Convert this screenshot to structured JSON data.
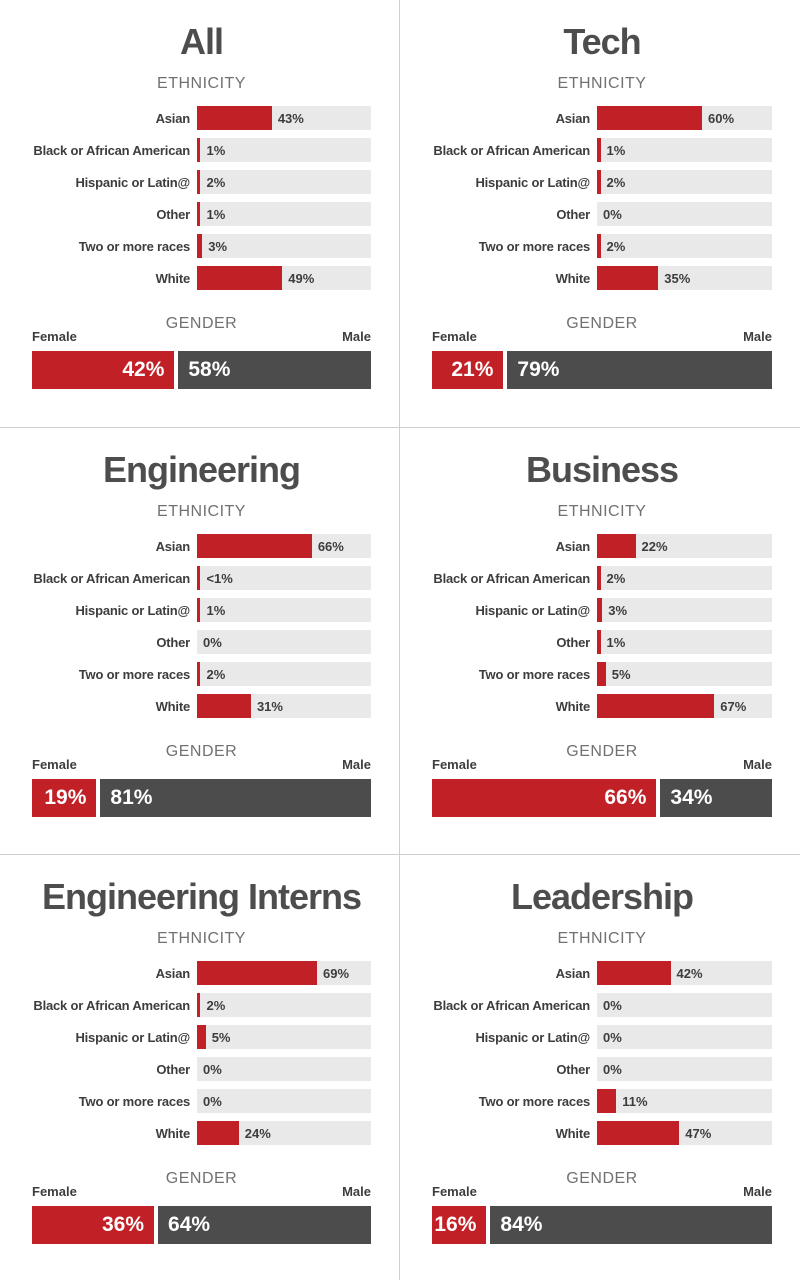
{
  "labels": {
    "ethnicity_heading": "ETHNICITY",
    "gender_heading": "GENDER",
    "female_label": "Female",
    "male_label": "Male"
  },
  "colors": {
    "accent_red": "#c22027",
    "male_dark": "#4c4c4c",
    "bar_track": "#e9e9e9",
    "divider": "#cfcfcf"
  },
  "chart_data": [
    {
      "type": "bar",
      "title": "All",
      "ethnicity": {
        "categories": [
          "Asian",
          "Black or African American",
          "Hispanic or Latin@",
          "Other",
          "Two or more races",
          "White"
        ],
        "values": [
          43,
          1,
          2,
          1,
          3,
          49
        ],
        "display": [
          "43%",
          "1%",
          "2%",
          "1%",
          "3%",
          "49%"
        ],
        "xlim": [
          0,
          100
        ]
      },
      "gender": {
        "female": 42,
        "male": 58,
        "female_display": "42%",
        "male_display": "58%"
      }
    },
    {
      "type": "bar",
      "title": "Tech",
      "ethnicity": {
        "categories": [
          "Asian",
          "Black or African American",
          "Hispanic or Latin@",
          "Other",
          "Two or more races",
          "White"
        ],
        "values": [
          60,
          1,
          2,
          0,
          2,
          35
        ],
        "display": [
          "60%",
          "1%",
          "2%",
          "0%",
          "2%",
          "35%"
        ],
        "xlim": [
          0,
          100
        ]
      },
      "gender": {
        "female": 21,
        "male": 79,
        "female_display": "21%",
        "male_display": "79%"
      }
    },
    {
      "type": "bar",
      "title": "Engineering",
      "ethnicity": {
        "categories": [
          "Asian",
          "Black or African American",
          "Hispanic or Latin@",
          "Other",
          "Two or more races",
          "White"
        ],
        "values": [
          66,
          0.5,
          1,
          0,
          2,
          31
        ],
        "display": [
          "66%",
          "<1%",
          "1%",
          "0%",
          "2%",
          "31%"
        ],
        "xlim": [
          0,
          100
        ]
      },
      "gender": {
        "female": 19,
        "male": 81,
        "female_display": "19%",
        "male_display": "81%"
      }
    },
    {
      "type": "bar",
      "title": "Business",
      "ethnicity": {
        "categories": [
          "Asian",
          "Black or African American",
          "Hispanic or Latin@",
          "Other",
          "Two or more races",
          "White"
        ],
        "values": [
          22,
          2,
          3,
          1,
          5,
          67
        ],
        "display": [
          "22%",
          "2%",
          "3%",
          "1%",
          "5%",
          "67%"
        ],
        "xlim": [
          0,
          100
        ]
      },
      "gender": {
        "female": 66,
        "male": 34,
        "female_display": "66%",
        "male_display": "34%"
      }
    },
    {
      "type": "bar",
      "title": "Engineering Interns",
      "ethnicity": {
        "categories": [
          "Asian",
          "Black or African American",
          "Hispanic or Latin@",
          "Other",
          "Two or more races",
          "White"
        ],
        "values": [
          69,
          2,
          5,
          0,
          0,
          24
        ],
        "display": [
          "69%",
          "2%",
          "5%",
          "0%",
          "0%",
          "24%"
        ],
        "xlim": [
          0,
          100
        ]
      },
      "gender": {
        "female": 36,
        "male": 64,
        "female_display": "36%",
        "male_display": "64%"
      }
    },
    {
      "type": "bar",
      "title": "Leadership",
      "ethnicity": {
        "categories": [
          "Asian",
          "Black or African American",
          "Hispanic or Latin@",
          "Other",
          "Two or more races",
          "White"
        ],
        "values": [
          42,
          0,
          0,
          0,
          11,
          47
        ],
        "display": [
          "42%",
          "0%",
          "0%",
          "0%",
          "11%",
          "47%"
        ],
        "xlim": [
          0,
          100
        ]
      },
      "gender": {
        "female": 16,
        "male": 84,
        "female_display": "16%",
        "male_display": "84%"
      }
    }
  ]
}
